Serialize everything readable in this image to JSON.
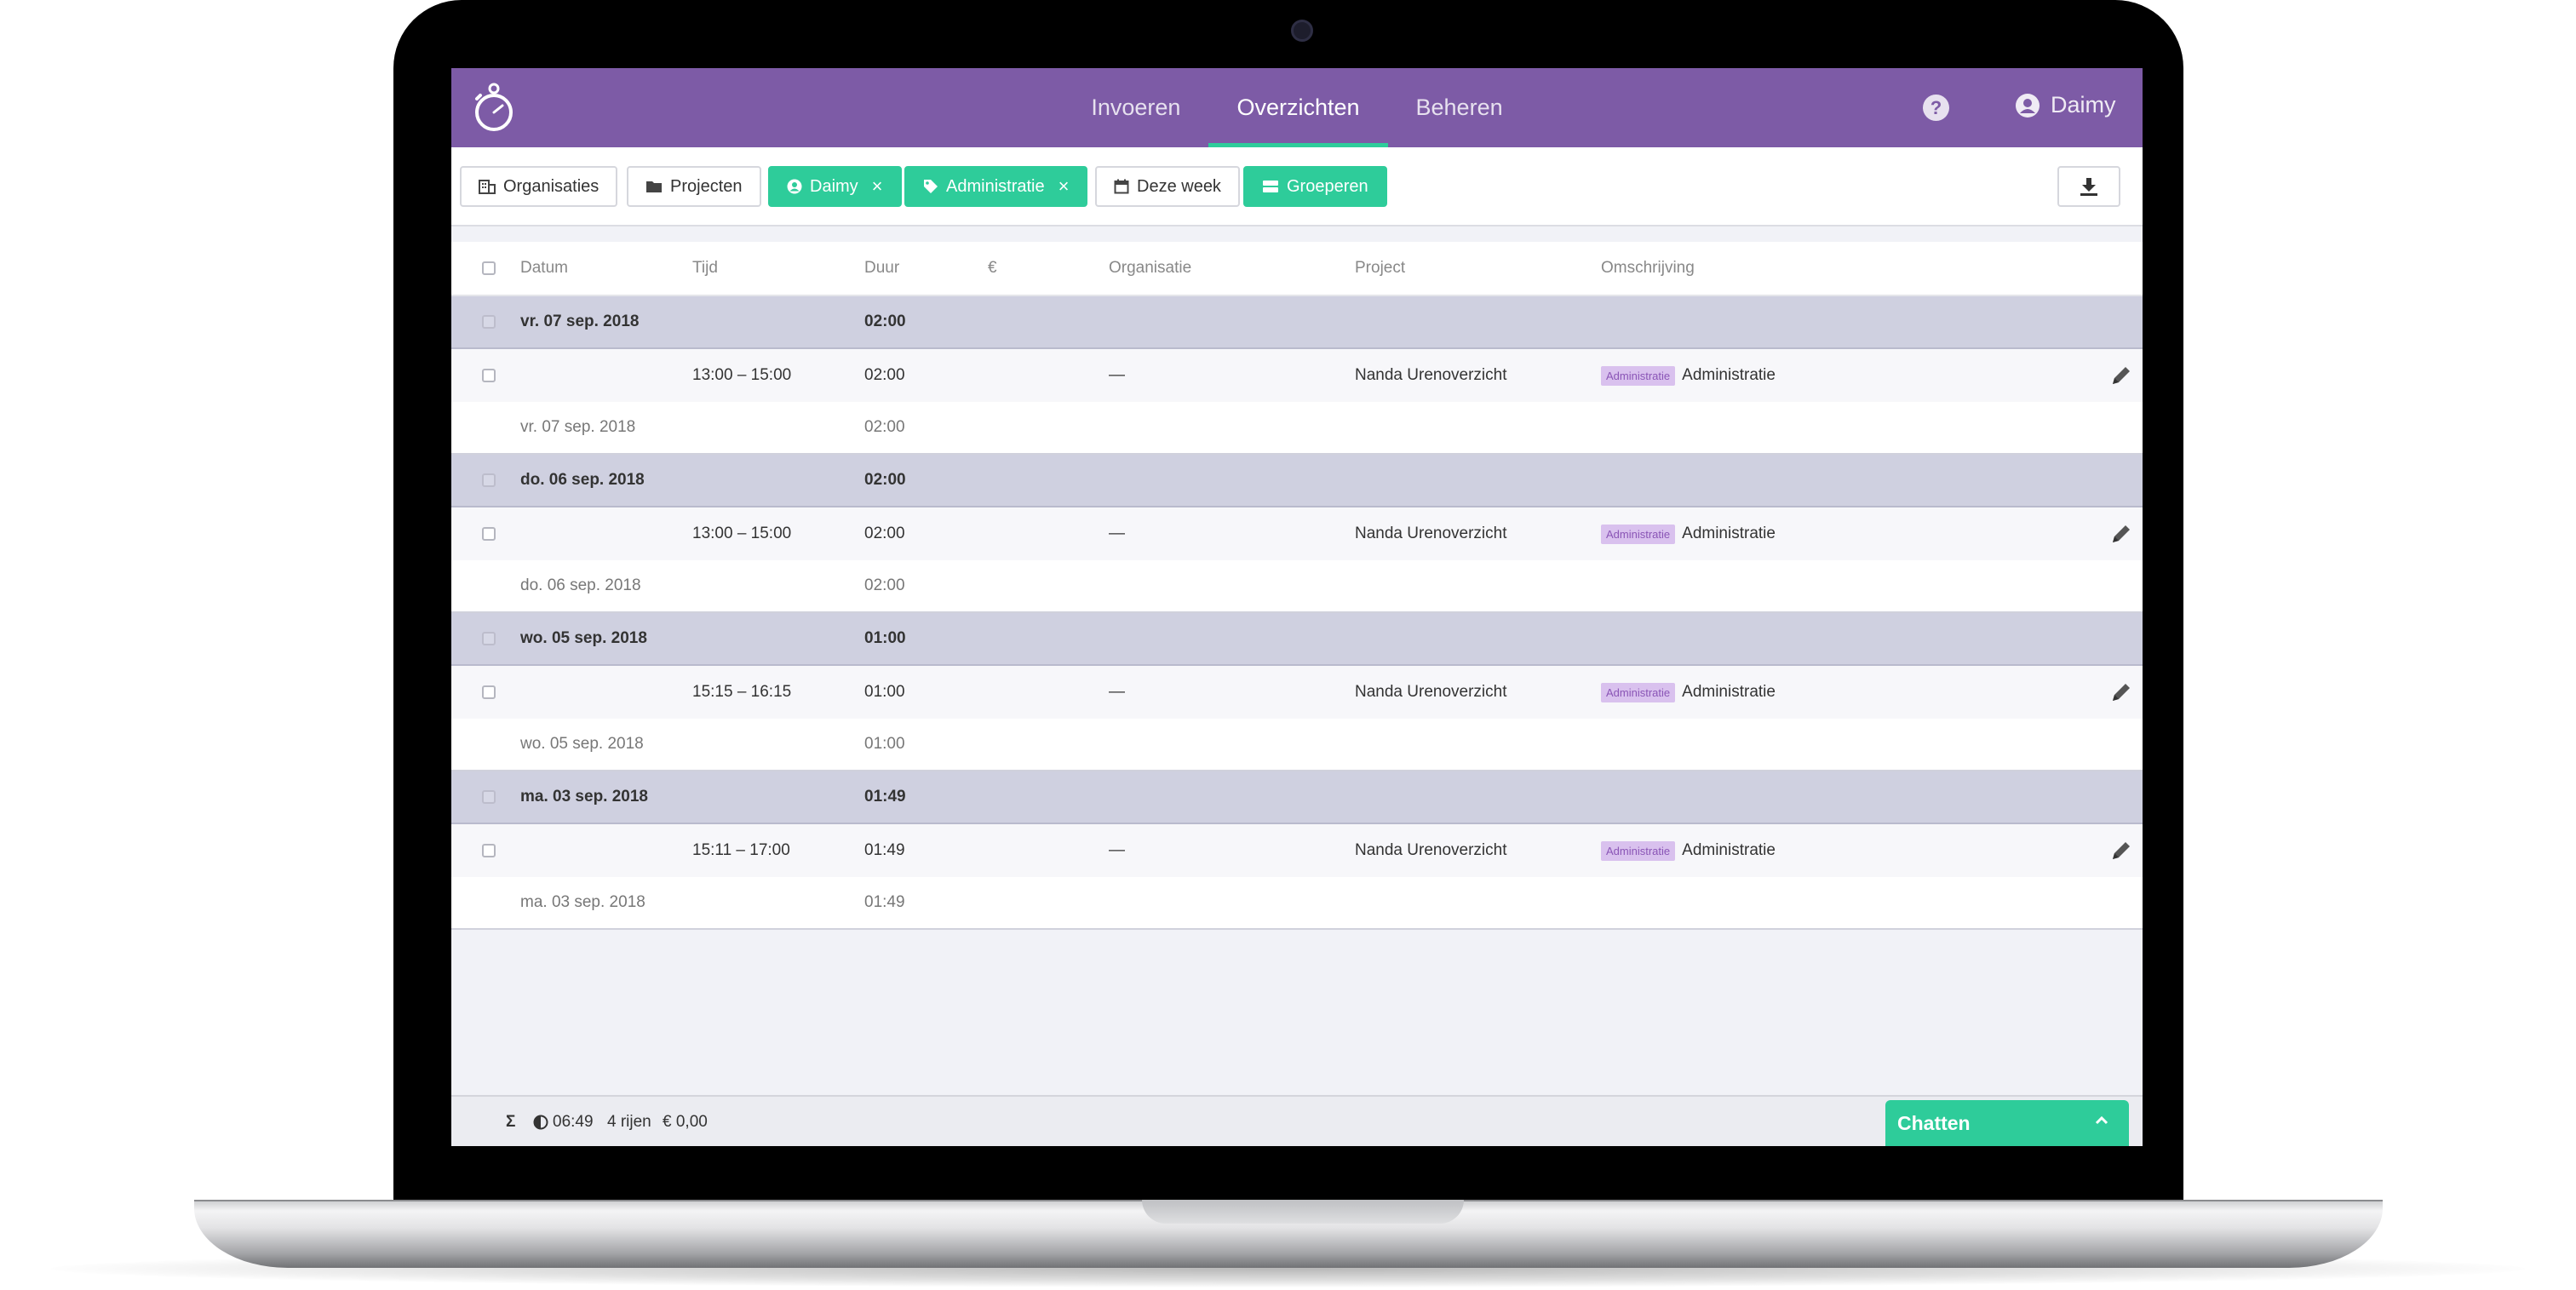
{
  "nav": {
    "tabs": [
      {
        "label": "Invoeren"
      },
      {
        "label": "Overzichten",
        "active": true
      },
      {
        "label": "Beheren"
      }
    ],
    "help_icon_text": "?",
    "user_name": "Daimy"
  },
  "filters": {
    "organisaties": "Organisaties",
    "projecten": "Projecten",
    "user_filter": "Daimy",
    "tag_filter": "Administratie",
    "period": "Deze week",
    "group": "Groeperen",
    "remove_symbol": "×"
  },
  "table": {
    "headers": {
      "datum": "Datum",
      "tijd": "Tijd",
      "duur": "Duur",
      "euro": "€",
      "organisatie": "Organisatie",
      "project": "Project",
      "omschrijving": "Omschrijving"
    },
    "groups": [
      {
        "date": "vr. 07 sep. 2018",
        "total": "02:00",
        "entry": {
          "time": "13:00 – 15:00",
          "duration": "02:00",
          "organisatie": "—",
          "project": "Nanda Urenoverzicht",
          "tag": "Administratie",
          "description": "Administratie"
        },
        "summary_date": "vr. 07 sep. 2018",
        "summary_total": "02:00"
      },
      {
        "date": "do. 06 sep. 2018",
        "total": "02:00",
        "entry": {
          "time": "13:00 – 15:00",
          "duration": "02:00",
          "organisatie": "—",
          "project": "Nanda Urenoverzicht",
          "tag": "Administratie",
          "description": "Administratie"
        },
        "summary_date": "do. 06 sep. 2018",
        "summary_total": "02:00"
      },
      {
        "date": "wo. 05 sep. 2018",
        "total": "01:00",
        "entry": {
          "time": "15:15 – 16:15",
          "duration": "01:00",
          "organisatie": "—",
          "project": "Nanda Urenoverzicht",
          "tag": "Administratie",
          "description": "Administratie"
        },
        "summary_date": "wo. 05 sep. 2018",
        "summary_total": "01:00"
      },
      {
        "date": "ma. 03 sep. 2018",
        "total": "01:49",
        "entry": {
          "time": "15:11 – 17:00",
          "duration": "01:49",
          "organisatie": "—",
          "project": "Nanda Urenoverzicht",
          "tag": "Administratie",
          "description": "Administratie"
        },
        "summary_date": "ma. 03 sep. 2018",
        "summary_total": "01:49"
      }
    ]
  },
  "footer": {
    "sigma": "Σ",
    "total_time": "06:49",
    "rows": "4 rijen",
    "amount": "€ 0,00"
  },
  "chat": {
    "label": "Chatten"
  },
  "colors": {
    "brand_purple": "#7d5ba6",
    "accent_green": "#2ecc9a",
    "group_row": "#cfd0e0",
    "tag_bg": "#d9c1ee"
  }
}
